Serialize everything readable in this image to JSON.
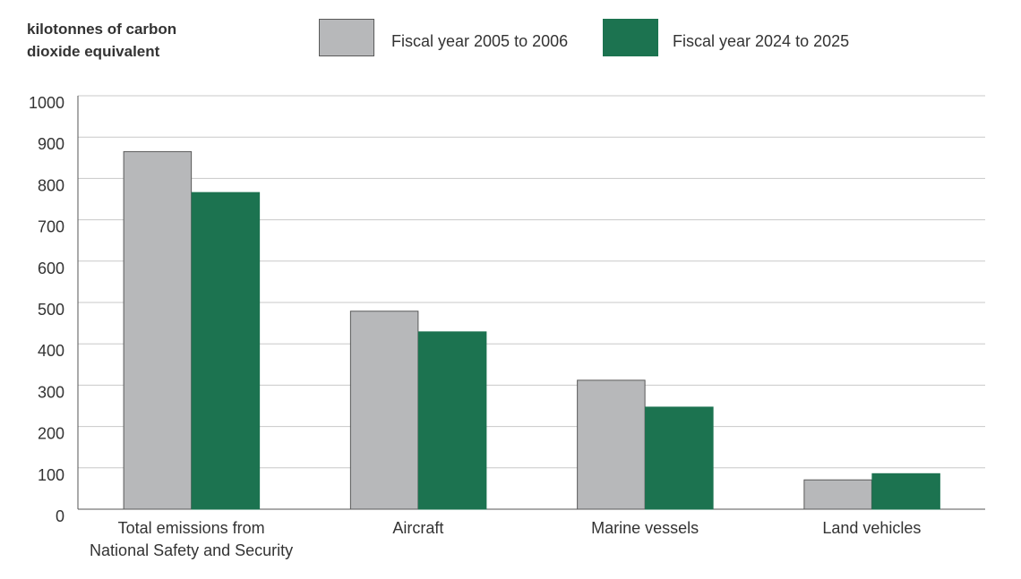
{
  "chart_data": {
    "type": "bar",
    "ylabel_lines": [
      "kilotonnes of carbon",
      "dioxide equivalent"
    ],
    "ylim": [
      0,
      1000
    ],
    "yticks": [
      0,
      100,
      200,
      300,
      400,
      500,
      600,
      700,
      800,
      900,
      1000
    ],
    "grid": true,
    "categories": [
      [
        "Total emissions from",
        "National Safety and Security"
      ],
      [
        "Aircraft"
      ],
      [
        "Marine vessels"
      ],
      [
        "Land vehicles"
      ]
    ],
    "series": [
      {
        "name": "Fiscal year 2005 to 2006",
        "color": "#b7b8ba",
        "stroke": "#5a5a5a",
        "values": [
          866,
          480,
          313,
          72
        ]
      },
      {
        "name": "Fiscal year 2024 to 2025",
        "color": "#1c7350",
        "stroke": "#1c7350",
        "values": [
          767,
          430,
          248,
          87
        ]
      }
    ],
    "legend_position": "top"
  }
}
